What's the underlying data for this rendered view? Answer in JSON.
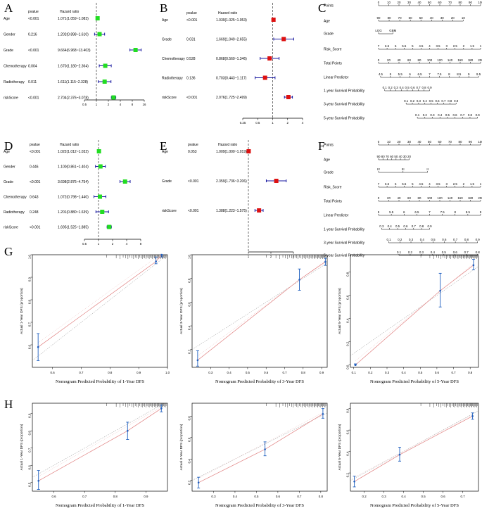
{
  "panel_letters": [
    "A",
    "B",
    "C",
    "D",
    "E",
    "F",
    "G",
    "H"
  ],
  "forest": {
    "col_pvalue": "pvalue",
    "col_hr": "Hazard ratio",
    "A": {
      "rows": [
        {
          "name": "Age",
          "p": "<0.001",
          "hr_text": "1.071(1.059~1.083)",
          "hr": 1.071,
          "lo": 1.059,
          "hi": 1.083
        },
        {
          "name": "Gender",
          "p": "0.216",
          "hr_text": "1.202(0.898~1.610)",
          "hr": 1.202,
          "lo": 0.898,
          "hi": 1.61
        },
        {
          "name": "Grade",
          "p": "<0.001",
          "hr_text": "9.664(6.968~13.403)",
          "hr": 9.664,
          "lo": 6.968,
          "hi": 13.403
        },
        {
          "name": "Chemotherapy",
          "p": "0.004",
          "hr_text": "1.670(1.180~2.364)",
          "hr": 1.67,
          "lo": 1.18,
          "hi": 2.364
        },
        {
          "name": "Radiotherapy",
          "p": "0.011",
          "hr_text": "1.611(1.115~2.328)",
          "hr": 1.611,
          "lo": 1.115,
          "hi": 2.328
        },
        {
          "name": "riskScore",
          "p": "<0.001",
          "hr_text": "2.704(2.376~3.078)",
          "hr": 2.704,
          "lo": 2.376,
          "hi": 3.078
        }
      ],
      "ticks": [
        "0.5",
        "1",
        "2",
        "4",
        "8",
        "16"
      ],
      "color": "#22dd22"
    },
    "B": {
      "rows": [
        {
          "name": "Age",
          "p": "<0.001",
          "hr_text": "1.039(1.025~1.053)",
          "hr": 1.039,
          "lo": 1.025,
          "hi": 1.053
        },
        {
          "name": "Grade",
          "p": "0.031",
          "hr_text": "1.669(1.049~2.655)",
          "hr": 1.669,
          "lo": 1.049,
          "hi": 2.655
        },
        {
          "name": "Chemotherapy",
          "p": "0.528",
          "hr_text": "0.868(0.560~1.346)",
          "hr": 0.868,
          "lo": 0.56,
          "hi": 1.346
        },
        {
          "name": "Radiotherapy",
          "p": "0.136",
          "hr_text": "0.703(0.443~1.117)",
          "hr": 0.703,
          "lo": 0.443,
          "hi": 1.117
        },
        {
          "name": "riskScore",
          "p": "<0.001",
          "hr_text": "2.076(1.725~2.499)",
          "hr": 2.076,
          "lo": 1.725,
          "hi": 2.499
        }
      ],
      "ticks": [
        "0.25",
        "0.5",
        "1",
        "2",
        "4"
      ],
      "color": "#dd1111"
    },
    "D": {
      "rows": [
        {
          "name": "Age",
          "p": "<0.001",
          "hr_text": "1.022(1.012~1.032)",
          "hr": 1.022,
          "lo": 1.012,
          "hi": 1.032
        },
        {
          "name": "Gender",
          "p": "0.446",
          "hr_text": "1.100(0.861~1.404)",
          "hr": 1.1,
          "lo": 0.861,
          "hi": 1.404
        },
        {
          "name": "Grade",
          "p": "<0.001",
          "hr_text": "3.698(2.876~4.754)",
          "hr": 3.698,
          "lo": 2.876,
          "hi": 4.754
        },
        {
          "name": "Chemotherapy",
          "p": "0.643",
          "hr_text": "1.072(0.798~1.440)",
          "hr": 1.072,
          "lo": 0.798,
          "hi": 1.44
        },
        {
          "name": "Radiotherapy",
          "p": "0.248",
          "hr_text": "1.201(0.880~1.639)",
          "hr": 1.201,
          "lo": 0.88,
          "hi": 1.639
        },
        {
          "name": "riskScore",
          "p": "<0.001",
          "hr_text": "1.695(1.525~1.885)",
          "hr": 1.695,
          "lo": 1.525,
          "hi": 1.885
        }
      ],
      "ticks": [
        "0.5",
        "1",
        "2",
        "4",
        "8"
      ],
      "color": "#22dd22"
    },
    "E": {
      "rows": [
        {
          "name": "Age",
          "p": "0.053",
          "hr_text": "1.009(1.000~1.019)",
          "hr": 1.009,
          "lo": 1.0,
          "hi": 1.019
        },
        {
          "name": "Grade",
          "p": "<0.001",
          "hr_text": "2.359(1.736~3.206)",
          "hr": 2.359,
          "lo": 1.736,
          "hi": 3.206
        },
        {
          "name": "riskScore",
          "p": "<0.001",
          "hr_text": "1.388(1.223~1.575)",
          "hr": 1.388,
          "lo": 1.223,
          "hi": 1.575
        }
      ],
      "ticks": [
        "1",
        "2",
        "4"
      ],
      "color": "#dd1111"
    }
  },
  "nomogram": {
    "C": {
      "rows": [
        {
          "label": "Points",
          "ticks": [
            "0",
            "10",
            "20",
            "30",
            "40",
            "50",
            "60",
            "70",
            "80",
            "90",
            "100"
          ]
        },
        {
          "label": "Age",
          "ticks": [
            "90",
            "80",
            "70",
            "60",
            "50",
            "40",
            "30",
            "20",
            "10"
          ]
        },
        {
          "label": "Grade",
          "ticks": [
            "LGG",
            "GBM"
          ]
        },
        {
          "label": "Risk_Score",
          "ticks": [
            "7",
            "6.5",
            "6",
            "5.5",
            "5",
            "4.5",
            "4",
            "3.5",
            "3",
            "2.5",
            "2",
            "1.5",
            "1"
          ]
        },
        {
          "label": "Total Points",
          "ticks": [
            "0",
            "20",
            "40",
            "60",
            "80",
            "100",
            "120",
            "140",
            "160",
            "180",
            "200"
          ]
        },
        {
          "label": "Linear Predictor",
          "ticks": [
            "4.5",
            "5",
            "5.5",
            "6",
            "6.5",
            "7",
            "7.5",
            "8",
            "8.5",
            "9",
            "9.5"
          ]
        },
        {
          "label": "1-year Survival Probability",
          "ticks": [
            "0.1",
            "0.2",
            "0.3",
            "0.4",
            "0.5",
            "0.6",
            "0.7",
            "0.8",
            "0.9"
          ]
        },
        {
          "label": "3-year Survival Probability",
          "ticks": [
            "0.1",
            "0.2",
            "0.3",
            "0.4",
            "0.5",
            "0.6",
            "0.7",
            "0.8",
            "0.9"
          ]
        },
        {
          "label": "5-year Survival Probability",
          "ticks": [
            "0.1",
            "0.2",
            "0.3",
            "0.4",
            "0.5",
            "0.6",
            "0.7",
            "0.8",
            "0.9"
          ]
        }
      ]
    },
    "F": {
      "rows": [
        {
          "label": "Points",
          "ticks": [
            "0",
            "10",
            "20",
            "30",
            "40",
            "50",
            "60",
            "70",
            "80",
            "90",
            "100"
          ]
        },
        {
          "label": "Age",
          "ticks": [
            "90",
            "80",
            "70",
            "60",
            "50",
            "40",
            "30",
            "20"
          ]
        },
        {
          "label": "Grade",
          "ticks": [
            "IV",
            "III",
            "II"
          ]
        },
        {
          "label": "Risk_Score",
          "ticks": [
            "7",
            "6.5",
            "6",
            "5.5",
            "5",
            "4.5",
            "4",
            "3.5",
            "3",
            "2.5",
            "2",
            "1.5",
            "1"
          ]
        },
        {
          "label": "Total Points",
          "ticks": [
            "0",
            "20",
            "40",
            "60",
            "80",
            "100",
            "120",
            "140",
            "160",
            "180",
            "200"
          ]
        },
        {
          "label": "Linear Predictor",
          "ticks": [
            "5",
            "5.5",
            "6",
            "6.5",
            "7",
            "7.5",
            "8",
            "8.5",
            "9"
          ]
        },
        {
          "label": "1-year Survival Probability",
          "ticks": [
            "0.3",
            "0.4",
            "0.5",
            "0.6",
            "0.7",
            "0.8",
            "0.9"
          ]
        },
        {
          "label": "3-year Survival Probability",
          "ticks": [
            "0.1",
            "0.2",
            "0.3",
            "0.4",
            "0.5",
            "0.6",
            "0.7",
            "0.8",
            "0.9"
          ]
        },
        {
          "label": "5-year Survival Probability",
          "ticks": [
            "0.1",
            "0.2",
            "0.3",
            "0.4",
            "0.5",
            "0.6",
            "0.7",
            "0.8"
          ]
        }
      ]
    }
  },
  "calibration": {
    "G1": {
      "xlabel": "Nomogram Predicted Probability of 1-Year DFS",
      "ylabel": "Actual 1-Year DFS (proportion)",
      "xticks": [
        "0.6",
        "0.7",
        "0.8",
        "0.9",
        "1.0"
      ],
      "yticks": [
        "0.6",
        "0.7",
        "0.8",
        "0.9",
        "1.0"
      ],
      "xlim": [
        0.53,
        1.0
      ],
      "ylim": [
        0.5,
        1.0
      ],
      "points": [
        {
          "x": 0.55,
          "y": 0.59,
          "lo": 0.53,
          "hi": 0.65
        },
        {
          "x": 0.96,
          "y": 0.97,
          "lo": 0.96,
          "hi": 0.99
        },
        {
          "x": 0.98,
          "y": 1.0,
          "lo": 0.99,
          "hi": 1.0
        }
      ]
    },
    "G2": {
      "xlabel": "Nomogram Predicted Probability of 3-Year DFS",
      "ylabel": "Actual 3-Year DFS (proportion)",
      "xticks": [
        "0.3",
        "0.4",
        "0.5",
        "0.6",
        "0.7",
        "0.8",
        "0.9"
      ],
      "yticks": [
        "0.2",
        "0.4",
        "0.6",
        "0.8",
        "1.0"
      ],
      "xlim": [
        0.2,
        0.93
      ],
      "ylim": [
        0.05,
        1.0
      ],
      "points": [
        {
          "x": 0.23,
          "y": 0.11,
          "lo": 0.06,
          "hi": 0.19
        },
        {
          "x": 0.78,
          "y": 0.79,
          "lo": 0.7,
          "hi": 0.88
        },
        {
          "x": 0.92,
          "y": 0.94,
          "lo": 0.91,
          "hi": 0.97
        }
      ]
    },
    "G3": {
      "xlabel": "Nomogram Predicted Probability of 5-Year DFS",
      "ylabel": "Actual 5-Year DFS (proportion)",
      "xticks": [
        "0.1",
        "0.2",
        "0.3",
        "0.4",
        "0.5",
        "0.6",
        "0.7",
        "0.8"
      ],
      "yticks": [
        "0.0",
        "0.2",
        "0.4",
        "0.6",
        "0.8"
      ],
      "xlim": [
        0.08,
        0.85
      ],
      "ylim": [
        -0.02,
        0.95
      ],
      "points": [
        {
          "x": 0.11,
          "y": 0.0,
          "lo": 0.0,
          "hi": 0.01
        },
        {
          "x": 0.62,
          "y": 0.64,
          "lo": 0.5,
          "hi": 0.79
        },
        {
          "x": 0.82,
          "y": 0.86,
          "lo": 0.82,
          "hi": 0.91
        }
      ]
    },
    "H1": {
      "xlabel": "Nomogram Predicted Probability of 1-Year DFS",
      "ylabel": "Actual 1-Year DFS (proportion)",
      "xticks": [
        "0.6",
        "0.7",
        "0.8",
        "0.9"
      ],
      "yticks": [
        "0.5",
        "0.6",
        "0.7",
        "0.8",
        "0.9"
      ],
      "xlim": [
        0.53,
        0.97
      ],
      "ylim": [
        0.45,
        0.96
      ],
      "points": [
        {
          "x": 0.55,
          "y": 0.51,
          "lo": 0.46,
          "hi": 0.57
        },
        {
          "x": 0.84,
          "y": 0.8,
          "lo": 0.75,
          "hi": 0.85
        },
        {
          "x": 0.95,
          "y": 0.93,
          "lo": 0.91,
          "hi": 0.95
        }
      ]
    },
    "H2": {
      "xlabel": "Nomogram Predicted Probability of 3-Year DFS",
      "ylabel": "Actual 3-Year DFS (proportion)",
      "xticks": [
        "0.3",
        "0.4",
        "0.5",
        "0.6",
        "0.7",
        "0.8"
      ],
      "yticks": [
        "0.2",
        "0.4",
        "0.6",
        "0.8"
      ],
      "xlim": [
        0.2,
        0.83
      ],
      "ylim": [
        0.1,
        0.92
      ],
      "points": [
        {
          "x": 0.23,
          "y": 0.18,
          "lo": 0.13,
          "hi": 0.23
        },
        {
          "x": 0.54,
          "y": 0.49,
          "lo": 0.43,
          "hi": 0.56
        },
        {
          "x": 0.81,
          "y": 0.82,
          "lo": 0.78,
          "hi": 0.87
        }
      ]
    },
    "H3": {
      "xlabel": "Nomogram Predicted Probability of 5-Year DFS",
      "ylabel": "Actual 5-Year DFS (proportion)",
      "xticks": [
        "0.2",
        "0.3",
        "0.4",
        "0.5",
        "0.6",
        "0.7"
      ],
      "yticks": [
        "0.2",
        "0.4",
        "0.6",
        "0.8"
      ],
      "xlim": [
        0.13,
        0.78
      ],
      "ylim": [
        0.03,
        0.85
      ],
      "points": [
        {
          "x": 0.15,
          "y": 0.12,
          "lo": 0.07,
          "hi": 0.17
        },
        {
          "x": 0.38,
          "y": 0.37,
          "lo": 0.31,
          "hi": 0.44
        },
        {
          "x": 0.75,
          "y": 0.73,
          "lo": 0.7,
          "hi": 0.76
        }
      ]
    }
  }
}
